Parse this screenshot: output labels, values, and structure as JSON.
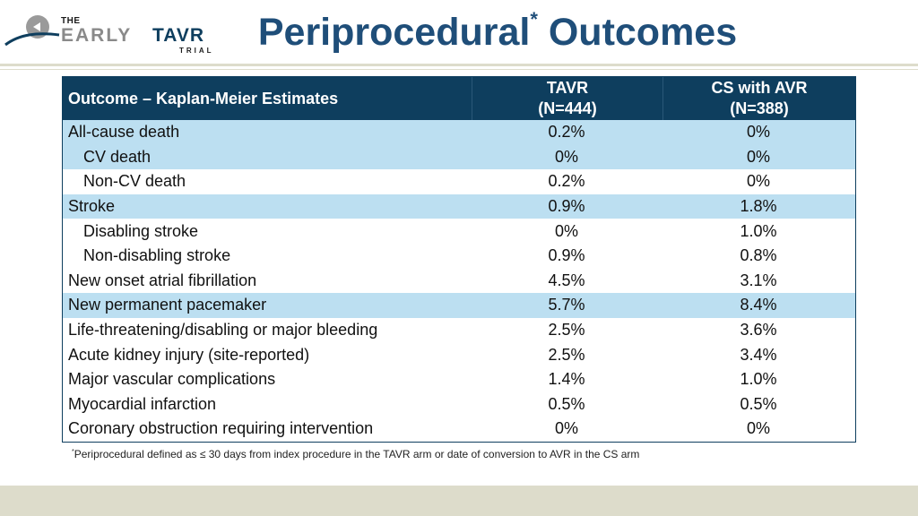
{
  "logo": {
    "the": "THE",
    "early": "EARLY",
    "tavr": "TAVR",
    "trial": "TRIAL"
  },
  "title": {
    "main": "Periprocedural",
    "sup": "*",
    "rest": "Outcomes"
  },
  "table": {
    "header": {
      "outcome": "Outcome – Kaplan-Meier Estimates",
      "tavr_line1": "TAVR",
      "tavr_line2": "(N=444)",
      "cs_line1": "CS with AVR",
      "cs_line2": "(N=388)"
    },
    "rows": [
      {
        "outcome": "All-cause death",
        "tavr": "0.2%",
        "cs": "0%"
      },
      {
        "outcome": "CV death",
        "tavr": "0%",
        "cs": "0%"
      },
      {
        "outcome": "Non-CV death",
        "tavr": "0.2%",
        "cs": "0%"
      },
      {
        "outcome": "Stroke",
        "tavr": "0.9%",
        "cs": "1.8%"
      },
      {
        "outcome": "Disabling stroke",
        "tavr": "0%",
        "cs": "1.0%"
      },
      {
        "outcome": "Non-disabling stroke",
        "tavr": "0.9%",
        "cs": "0.8%"
      },
      {
        "outcome": "New onset atrial fibrillation",
        "tavr": "4.5%",
        "cs": "3.1%"
      },
      {
        "outcome": "New permanent pacemaker",
        "tavr": "5.7%",
        "cs": "8.4%"
      },
      {
        "outcome": "Life-threatening/disabling or major bleeding",
        "tavr": "2.5%",
        "cs": "3.6%"
      },
      {
        "outcome": "Acute kidney injury (site-reported)",
        "tavr": "2.5%",
        "cs": "3.4%"
      },
      {
        "outcome": "Major vascular complications",
        "tavr": "1.4%",
        "cs": "1.0%"
      },
      {
        "outcome": "Myocardial infarction",
        "tavr": "0.5%",
        "cs": "0.5%"
      },
      {
        "outcome": "Coronary obstruction requiring intervention",
        "tavr": "0%",
        "cs": "0%"
      }
    ]
  },
  "footnote": {
    "mark": "*",
    "text": "Periprocedural defined as ≤ 30 days from index procedure in the TAVR arm or date of conversion to AVR in the CS arm"
  },
  "colors": {
    "header_bg": "#0e3e5e",
    "highlight": "#bcdff1",
    "title": "#1f4e79",
    "band": "#dddccb"
  }
}
